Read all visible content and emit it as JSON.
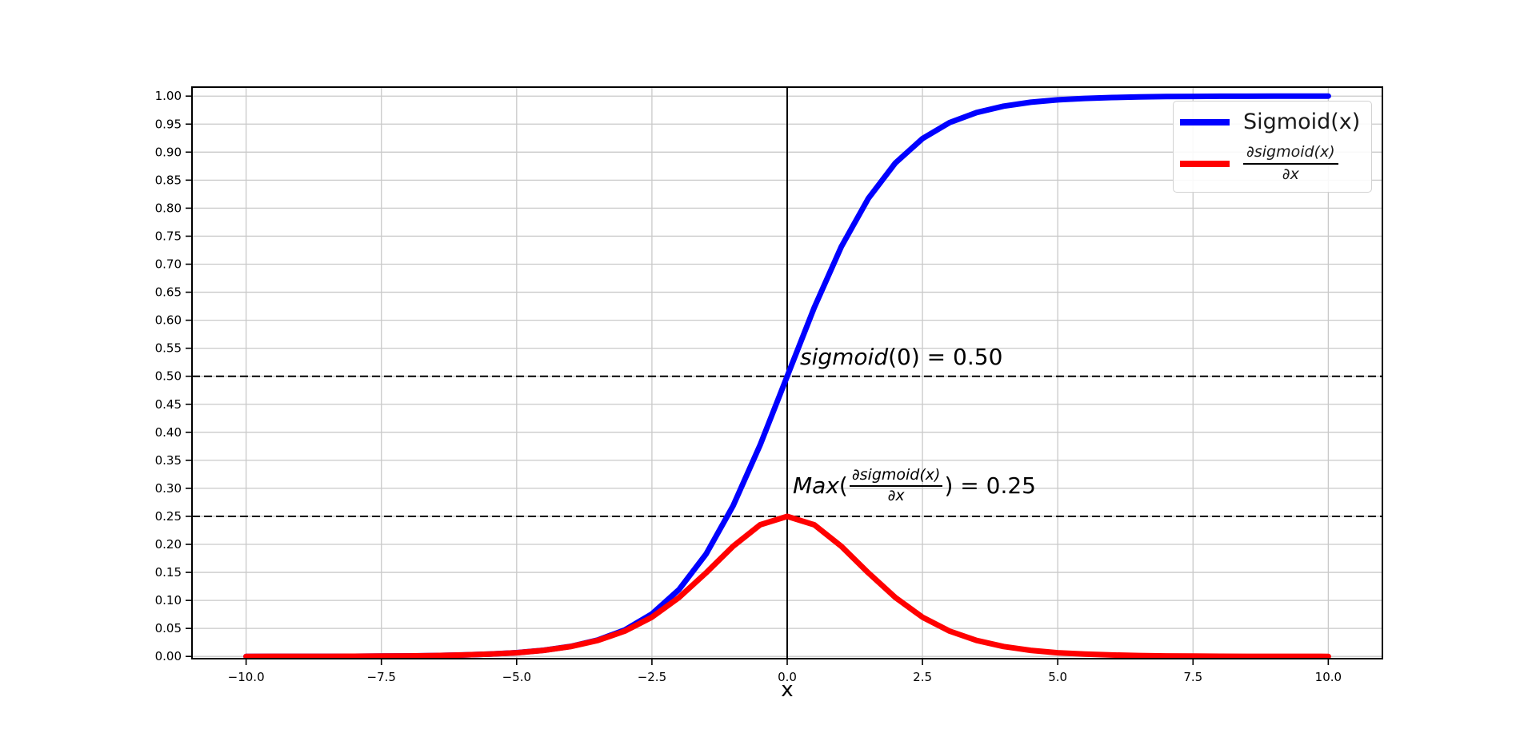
{
  "chart_data": {
    "type": "line",
    "title": "",
    "xlabel": "x",
    "ylabel": "",
    "grid": true,
    "xlim": [
      -11.0,
      11.0
    ],
    "ylim": [
      -0.004,
      1.016
    ],
    "x": [
      -10,
      -9.5,
      -9,
      -8.5,
      -8,
      -7.5,
      -7,
      -6.5,
      -6,
      -5.5,
      -5,
      -4.5,
      -4,
      -3.5,
      -3,
      -2.5,
      -2,
      -1.5,
      -1,
      -0.5,
      0,
      0.5,
      1,
      1.5,
      2,
      2.5,
      3,
      3.5,
      4,
      4.5,
      5,
      5.5,
      6,
      6.5,
      7,
      7.5,
      8,
      8.5,
      9,
      9.5,
      10
    ],
    "series": [
      {
        "name": "Sigmoid(x)",
        "color": "#0000ff",
        "linewidth": 7,
        "values": [
          0.0,
          0.0001,
          0.0001,
          0.0002,
          0.0003,
          0.0006,
          0.0009,
          0.0015,
          0.0025,
          0.0041,
          0.0067,
          0.011,
          0.018,
          0.0293,
          0.0474,
          0.0759,
          0.1192,
          0.1824,
          0.2689,
          0.3775,
          0.5,
          0.6225,
          0.7311,
          0.8176,
          0.8808,
          0.9241,
          0.9526,
          0.9707,
          0.982,
          0.989,
          0.9933,
          0.9959,
          0.9975,
          0.9985,
          0.9991,
          0.9994,
          0.9997,
          0.9998,
          0.9999,
          0.9999,
          1.0
        ]
      },
      {
        "name": "∂sigmoid(x)/∂x",
        "color": "#ff0000",
        "linewidth": 7,
        "values": [
          0.0,
          0.0001,
          0.0001,
          0.0002,
          0.0003,
          0.0006,
          0.0009,
          0.0015,
          0.0025,
          0.0041,
          0.0066,
          0.0109,
          0.0177,
          0.0285,
          0.0452,
          0.0701,
          0.105,
          0.1491,
          0.1966,
          0.235,
          0.25,
          0.235,
          0.1966,
          0.1491,
          0.105,
          0.0701,
          0.0452,
          0.0285,
          0.0177,
          0.0109,
          0.0066,
          0.0041,
          0.0025,
          0.0015,
          0.0009,
          0.0006,
          0.0003,
          0.0002,
          0.0001,
          0.0001,
          0.0
        ]
      }
    ],
    "xticks": [
      -10,
      -7.5,
      -5,
      -2.5,
      0,
      2.5,
      5,
      7.5,
      10
    ],
    "xtick_labels": [
      "−10.0",
      "−7.5",
      "−5.0",
      "−2.5",
      "0.0",
      "2.5",
      "5.0",
      "7.5",
      "10.0"
    ],
    "yticks": [
      0,
      0.05,
      0.1,
      0.15,
      0.2,
      0.25,
      0.3,
      0.35,
      0.4,
      0.45,
      0.5,
      0.55,
      0.6,
      0.65,
      0.7,
      0.75,
      0.8,
      0.85,
      0.9,
      0.95,
      1
    ],
    "ytick_labels": [
      "0.00",
      "0.05",
      "0.10",
      "0.15",
      "0.20",
      "0.25",
      "0.30",
      "0.35",
      "0.40",
      "0.45",
      "0.50",
      "0.55",
      "0.60",
      "0.65",
      "0.70",
      "0.75",
      "0.80",
      "0.85",
      "0.90",
      "0.95",
      "1.00"
    ],
    "reference_lines": {
      "horizontal_dashed": [
        0.5,
        0.25
      ],
      "vertical_solid": [
        0
      ]
    },
    "legend": {
      "position": "upper right",
      "entries": [
        {
          "label": "Sigmoid(x)",
          "color": "#0000ff"
        },
        {
          "label_numerator": "∂sigmoid(x)",
          "label_denominator": "∂x",
          "color": "#ff0000"
        }
      ]
    },
    "annotations": [
      {
        "italic_part": "sigmoid",
        "plain_part": "(0) = 0.50"
      },
      {
        "prefix_italic": "Max",
        "open_paren": "(",
        "numerator": "∂sigmoid(x)",
        "denominator": "∂x",
        "suffix": ") = 0.25"
      }
    ],
    "colors": {
      "grid": "#c9c9c9",
      "axis": "#000000",
      "reference": "#000000",
      "background": "#ffffff"
    }
  }
}
